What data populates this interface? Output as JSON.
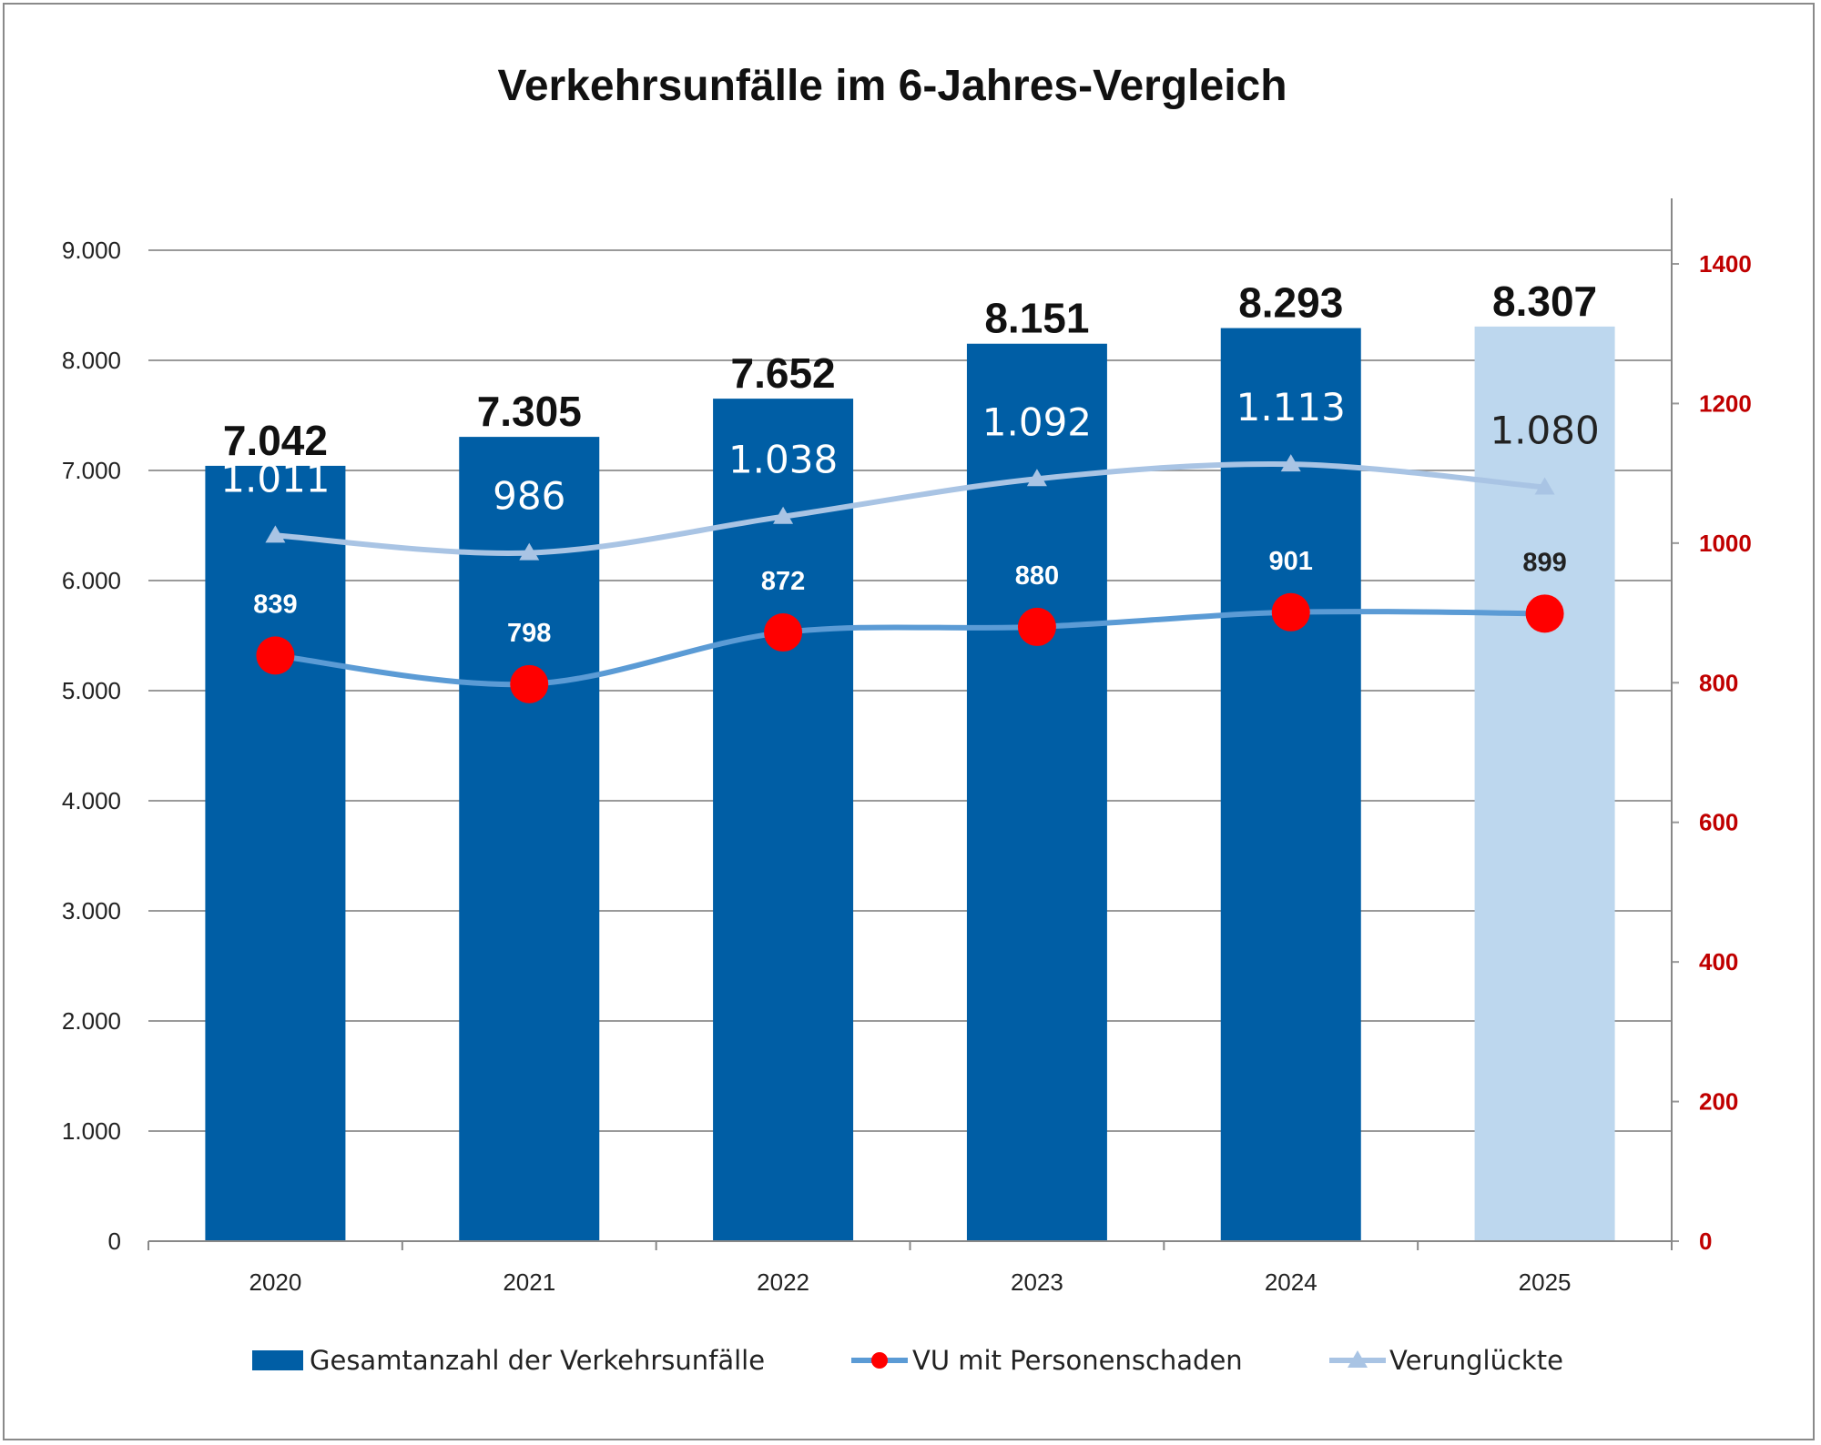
{
  "chart_data": {
    "type": "bar",
    "title": "Verkehrsunfälle im 6-Jahres-Vergleich",
    "categories": [
      "2020",
      "2021",
      "2022",
      "2023",
      "2024",
      "2025"
    ],
    "y_left": {
      "range": [
        0,
        9000
      ],
      "ticks": [
        "0",
        "1.000",
        "2.000",
        "3.000",
        "4.000",
        "5.000",
        "6.000",
        "7.000",
        "8.000",
        "9.000"
      ]
    },
    "y_right": {
      "range": [
        0,
        1400
      ],
      "ticks": [
        "0",
        "200",
        "400",
        "600",
        "800",
        "1000",
        "1200",
        "1400"
      ],
      "color": "#C00000"
    },
    "grid": true,
    "legend_position": "bottom",
    "series": [
      {
        "name": "Gesamtanzahl der Verkehrsunfälle",
        "type": "bar",
        "axis": "left",
        "values": [
          7042,
          7305,
          7652,
          8151,
          8293,
          8307
        ],
        "labels": [
          "7.042",
          "7.305",
          "7.652",
          "8.151",
          "8.293",
          "8.307"
        ],
        "color": "#005EA5",
        "highlight_color": "#BDD7EE"
      },
      {
        "name": "VU mit Personenschaden",
        "type": "line",
        "axis": "right",
        "marker": "circle",
        "values": [
          839,
          798,
          872,
          880,
          901,
          899
        ],
        "labels": [
          "839",
          "798",
          "872",
          "880",
          "901",
          "899"
        ],
        "color": "#5B9BD5",
        "marker_color": "#FF0000"
      },
      {
        "name": "Verunglückte",
        "type": "line",
        "axis": "right",
        "marker": "triangle",
        "values": [
          1011,
          986,
          1038,
          1092,
          1113,
          1080
        ],
        "labels": [
          "1.011",
          "986",
          "1.038",
          "1.092",
          "1.113",
          "1.080"
        ],
        "color": "#A9C4E4"
      }
    ]
  }
}
